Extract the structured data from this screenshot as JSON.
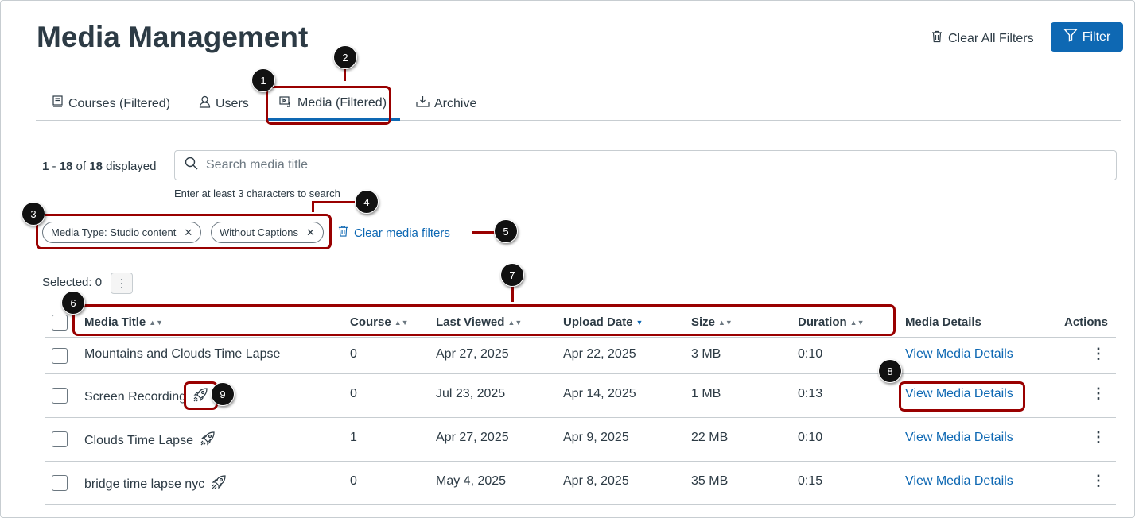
{
  "header": {
    "title": "Media Management",
    "clear_all_filters": "Clear All Filters",
    "filter_button": "Filter"
  },
  "tabs": [
    {
      "label": "Courses (Filtered)",
      "icon": "book-icon"
    },
    {
      "label": "Users",
      "icon": "user-icon"
    },
    {
      "label": "Media (Filtered)",
      "icon": "media-icon",
      "active": true
    },
    {
      "label": "Archive",
      "icon": "download-icon"
    }
  ],
  "results": {
    "range_start": "1",
    "range_end": "18",
    "total": "18",
    "of": "of",
    "displayed": "displayed"
  },
  "search": {
    "placeholder": "Search media title",
    "hint": "Enter at least 3 characters to search"
  },
  "filters": {
    "chips": [
      "Media Type: Studio content",
      "Without Captions"
    ],
    "clear_label": "Clear media filters"
  },
  "selection": {
    "label": "Selected: 0"
  },
  "table": {
    "columns": [
      "Media Title",
      "Course",
      "Last Viewed",
      "Upload Date",
      "Size",
      "Duration",
      "Media Details",
      "Actions"
    ],
    "sorted_column": "Upload Date",
    "rows": [
      {
        "title": "Mountains and Clouds Time Lapse",
        "studio": false,
        "course": "0",
        "last_viewed": "Apr 27, 2025",
        "upload_date": "Apr 22, 2025",
        "size": "3 MB",
        "duration": "0:10",
        "details": "View Media Details"
      },
      {
        "title": "Screen Recording",
        "studio": true,
        "course": "0",
        "last_viewed": "Jul 23, 2025",
        "upload_date": "Apr 14, 2025",
        "size": "1 MB",
        "duration": "0:13",
        "details": "View Media Details"
      },
      {
        "title": "Clouds Time Lapse",
        "studio": true,
        "course": "1",
        "last_viewed": "Apr 27, 2025",
        "upload_date": "Apr 9, 2025",
        "size": "22 MB",
        "duration": "0:10",
        "details": "View Media Details"
      },
      {
        "title": "bridge time lapse nyc",
        "studio": true,
        "course": "0",
        "last_viewed": "May 4, 2025",
        "upload_date": "Apr 8, 2025",
        "size": "35 MB",
        "duration": "0:15",
        "details": "View Media Details"
      }
    ]
  },
  "callouts": [
    "1",
    "2",
    "3",
    "4",
    "5",
    "6",
    "7",
    "8",
    "9"
  ],
  "colors": {
    "accent": "#0e68b3",
    "annotation": "#990000",
    "text": "#2d3b45"
  }
}
